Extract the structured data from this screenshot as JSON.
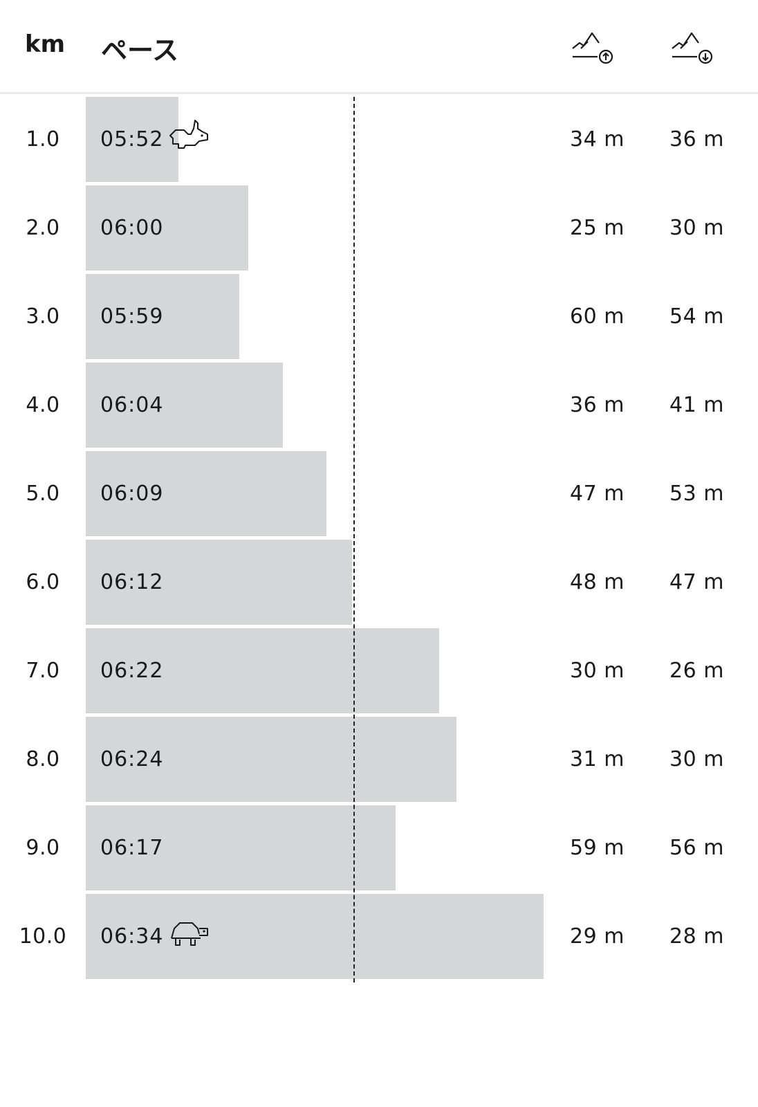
{
  "header": {
    "km_label": "km",
    "pace_label": "ペース",
    "ascent_icon": "mountain-up-icon",
    "descent_icon": "mountain-down-icon"
  },
  "pace_scale": {
    "min_seconds": 330,
    "max_seconds": 400,
    "average_seconds": 372
  },
  "rows": [
    {
      "km": "1.0",
      "pace": "05:52",
      "pace_seconds": 352,
      "ascent": "34 m",
      "descent": "36 m",
      "badge": "rabbit-icon"
    },
    {
      "km": "2.0",
      "pace": "06:00",
      "pace_seconds": 360,
      "ascent": "25 m",
      "descent": "30 m"
    },
    {
      "km": "3.0",
      "pace": "05:59",
      "pace_seconds": 359,
      "ascent": "60 m",
      "descent": "54 m"
    },
    {
      "km": "4.0",
      "pace": "06:04",
      "pace_seconds": 364,
      "ascent": "36 m",
      "descent": "41 m"
    },
    {
      "km": "5.0",
      "pace": "06:09",
      "pace_seconds": 369,
      "ascent": "47 m",
      "descent": "53 m"
    },
    {
      "km": "6.0",
      "pace": "06:12",
      "pace_seconds": 372,
      "ascent": "48 m",
      "descent": "47 m"
    },
    {
      "km": "7.0",
      "pace": "06:22",
      "pace_seconds": 382,
      "ascent": "30 m",
      "descent": "26 m"
    },
    {
      "km": "8.0",
      "pace": "06:24",
      "pace_seconds": 384,
      "ascent": "31 m",
      "descent": "30 m"
    },
    {
      "km": "9.0",
      "pace": "06:17",
      "pace_seconds": 377,
      "ascent": "59 m",
      "descent": "56 m"
    },
    {
      "km": "10.0",
      "pace": "06:34",
      "pace_seconds": 394,
      "ascent": "29 m",
      "descent": "28 m",
      "badge": "turtle-icon"
    }
  ],
  "colors": {
    "bar": "#d4d6d8",
    "text": "#1a1a1a",
    "divider": "#ececec"
  }
}
